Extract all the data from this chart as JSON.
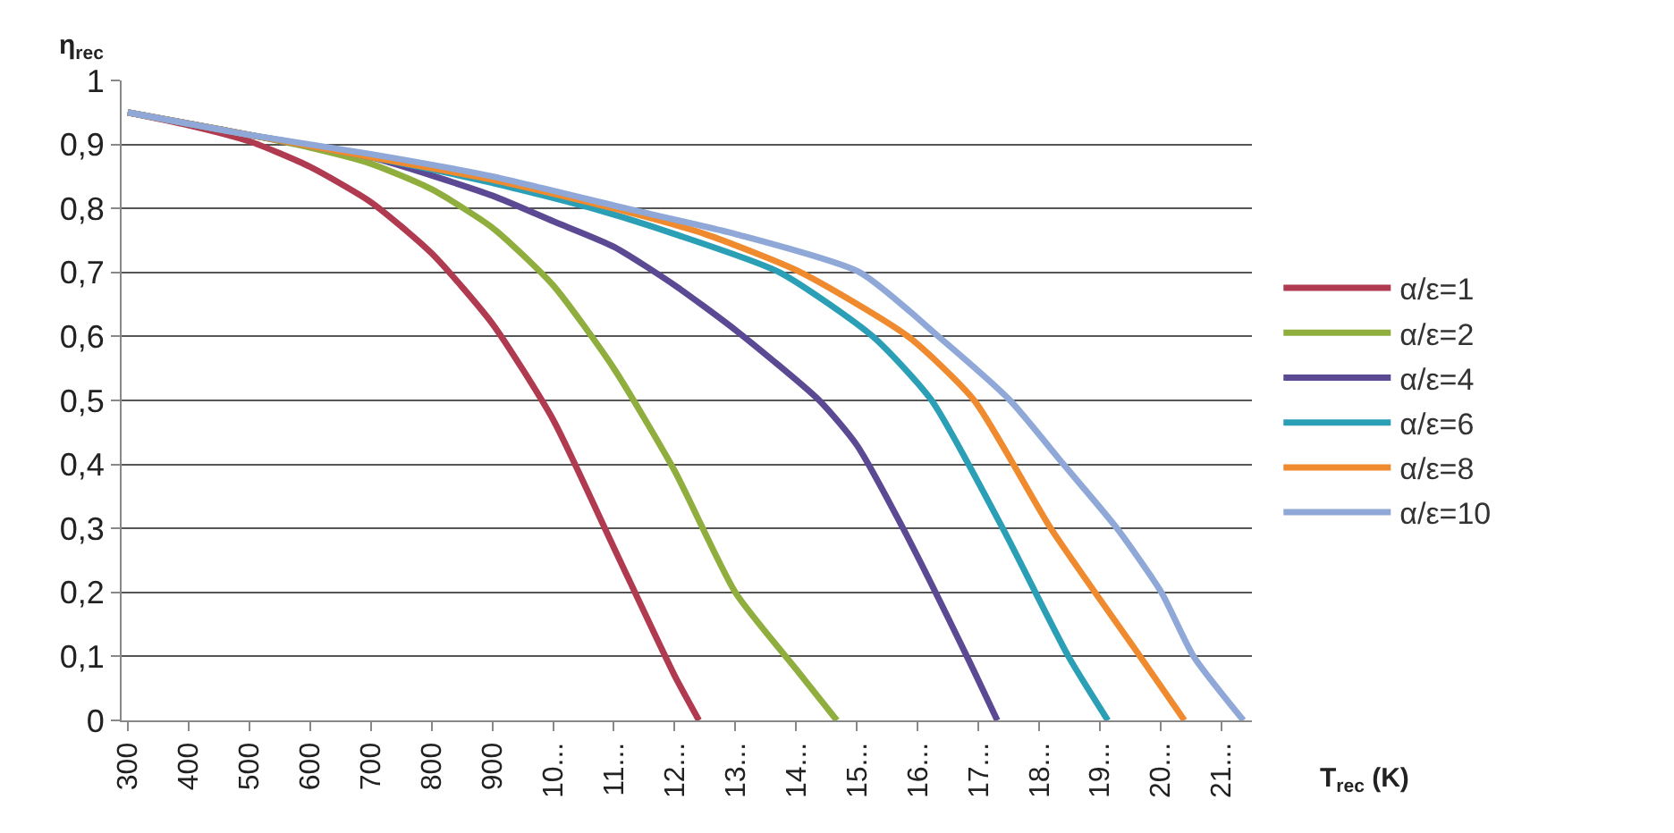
{
  "chart_data": {
    "type": "line",
    "xlabel": "T$_{rec}$ (K)",
    "ylabel": "η$_{rec}$",
    "xlim": [
      290,
      2150
    ],
    "ylim": [
      0,
      1
    ],
    "xticks": [
      300,
      400,
      500,
      600,
      700,
      800,
      900,
      {
        "value": 1000,
        "label": "10..."
      },
      {
        "value": 1100,
        "label": "11..."
      },
      {
        "value": 1200,
        "label": "12..."
      },
      {
        "value": 1300,
        "label": "13..."
      },
      {
        "value": 1400,
        "label": "14..."
      },
      {
        "value": 1500,
        "label": "15..."
      },
      {
        "value": 1600,
        "label": "16..."
      },
      {
        "value": 1700,
        "label": "17..."
      },
      {
        "value": 1800,
        "label": "18..."
      },
      {
        "value": 1900,
        "label": "19..."
      },
      {
        "value": 2000,
        "label": "20..."
      },
      {
        "value": 2100,
        "label": "21..."
      }
    ],
    "yticks": [
      {
        "value": 0,
        "label": "0"
      },
      {
        "value": 0.1,
        "label": "0,1"
      },
      {
        "value": 0.2,
        "label": "0,2"
      },
      {
        "value": 0.3,
        "label": "0,3"
      },
      {
        "value": 0.4,
        "label": "0,4"
      },
      {
        "value": 0.5,
        "label": "0,5"
      },
      {
        "value": 0.6,
        "label": "0,6"
      },
      {
        "value": 0.7,
        "label": "0,7"
      },
      {
        "value": 0.8,
        "label": "0,8"
      },
      {
        "value": 0.9,
        "label": "0,9"
      },
      {
        "value": 1,
        "label": "1"
      }
    ],
    "grid": "y",
    "legend": "right",
    "marker": "none",
    "line_style": "solid",
    "series": [
      {
        "name": "α/ε=1",
        "color": "#b03a50",
        "x": [
          300,
          400,
          500,
          600,
          700,
          800,
          900,
          1000,
          1100,
          1200,
          1240
        ],
        "values": [
          0.95,
          0.93,
          0.905,
          0.865,
          0.81,
          0.73,
          0.62,
          0.47,
          0.27,
          0.07,
          0
        ]
      },
      {
        "name": "α/ε=2",
        "color": "#8fae3e",
        "x": [
          300,
          500,
          600,
          700,
          800,
          900,
          1000,
          1100,
          1200,
          1300,
          1400,
          1467
        ],
        "values": [
          0.95,
          0.915,
          0.895,
          0.87,
          0.83,
          0.77,
          0.68,
          0.55,
          0.39,
          0.2,
          0.08,
          0
        ]
      },
      {
        "name": "α/ε=4",
        "color": "#5b4a93",
        "x": [
          300,
          500,
          700,
          900,
          1000,
          1100,
          1200,
          1300,
          1438,
          1500,
          1576,
          1681,
          1731
        ],
        "values": [
          0.95,
          0.915,
          0.88,
          0.82,
          0.78,
          0.74,
          0.68,
          0.61,
          0.5,
          0.43,
          0.3,
          0.1,
          0
        ]
      },
      {
        "name": "α/ε=6",
        "color": "#2a9fb5",
        "x": [
          300,
          500,
          700,
          900,
          1065,
          1200,
          1373,
          1526,
          1623,
          1740,
          1848,
          1913
        ],
        "values": [
          0.95,
          0.915,
          0.88,
          0.84,
          0.8,
          0.76,
          0.7,
          0.6,
          0.5,
          0.3,
          0.1,
          0
        ]
      },
      {
        "name": "α/ε=8",
        "color": "#f08a2e",
        "x": [
          300,
          500,
          700,
          900,
          1100,
          1250,
          1408,
          1584,
          1693,
          1819,
          1966,
          2039
        ],
        "values": [
          0.95,
          0.915,
          0.88,
          0.845,
          0.8,
          0.76,
          0.7,
          0.6,
          0.5,
          0.3,
          0.1,
          0
        ]
      },
      {
        "name": "α/ε=10",
        "color": "#8fa8d8",
        "x": [
          300,
          500,
          700,
          900,
          1120,
          1300,
          1505,
          1634,
          1752,
          1840,
          1928,
          2001,
          2054,
          2136
        ],
        "values": [
          0.95,
          0.915,
          0.885,
          0.85,
          0.8,
          0.76,
          0.7,
          0.6,
          0.5,
          0.4,
          0.3,
          0.2,
          0.1,
          0
        ]
      }
    ]
  }
}
